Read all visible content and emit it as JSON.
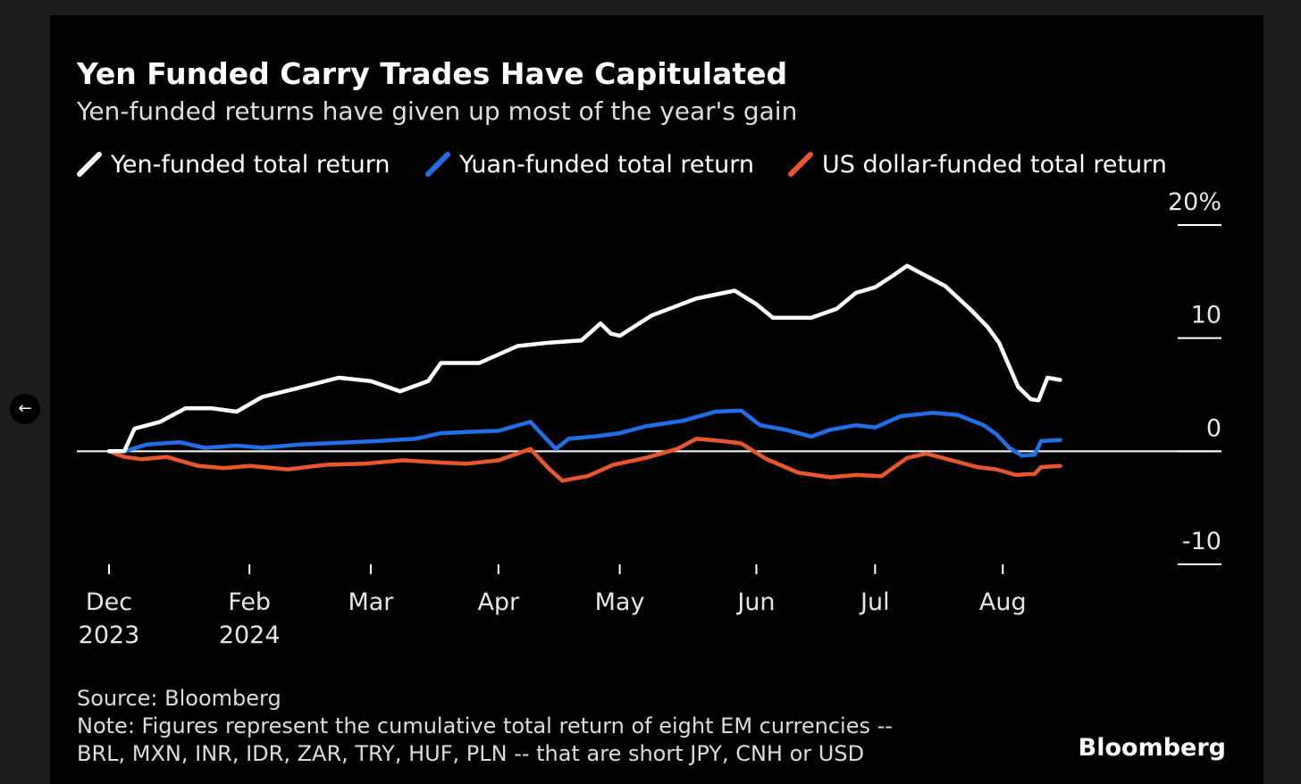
{
  "colors": {
    "background": "#000000",
    "yen": "#ffffff",
    "yuan": "#1f6fe8",
    "usd": "#e8572b",
    "zero_line": "#ffffff",
    "text": "#ffffff"
  },
  "ui": {
    "back_icon": "left-arrow-icon",
    "back_glyph": "←"
  },
  "chart_data": {
    "type": "line",
    "title": "Yen Funded Carry Trades Have Capitulated",
    "subtitle": "Yen-funded returns have given up most of the year's gain",
    "ylim": [
      -10,
      20
    ],
    "y_unit": "%",
    "y_ticks": [
      {
        "value": 20,
        "label": "20%"
      },
      {
        "value": 10,
        "label": "10"
      },
      {
        "value": 0,
        "label": "0"
      },
      {
        "value": -10,
        "label": "-10"
      }
    ],
    "x_domain": [
      0,
      8.3
    ],
    "x_ticks": [
      {
        "pos": 0.0,
        "month": "Dec",
        "year": "2023"
      },
      {
        "pos": 1.1,
        "month": "Feb",
        "year": "2024"
      },
      {
        "pos": 2.05,
        "month": "Mar",
        "year": ""
      },
      {
        "pos": 3.05,
        "month": "Apr",
        "year": ""
      },
      {
        "pos": 4.0,
        "month": "May",
        "year": ""
      },
      {
        "pos": 5.07,
        "month": "Jun",
        "year": ""
      },
      {
        "pos": 6.0,
        "month": "Jul",
        "year": ""
      },
      {
        "pos": 7.0,
        "month": "Aug",
        "year": ""
      }
    ],
    "legend": [
      {
        "key": "yen",
        "label": "Yen-funded total return"
      },
      {
        "key": "yuan",
        "label": "Yuan-funded total return"
      },
      {
        "key": "usd",
        "label": "US dollar-funded total return"
      }
    ],
    "series": [
      {
        "key": "yen",
        "name": "Yen-funded total return",
        "points": [
          [
            0,
            0
          ],
          [
            0.12,
            0
          ],
          [
            0.2,
            2
          ],
          [
            0.4,
            2.6
          ],
          [
            0.6,
            3.8
          ],
          [
            0.8,
            3.8
          ],
          [
            1.0,
            3.5
          ],
          [
            1.2,
            4.8
          ],
          [
            1.45,
            5.5
          ],
          [
            1.8,
            6.5
          ],
          [
            2.05,
            6.2
          ],
          [
            2.28,
            5.3
          ],
          [
            2.5,
            6.2
          ],
          [
            2.6,
            7.8
          ],
          [
            2.9,
            7.8
          ],
          [
            3.2,
            9.3
          ],
          [
            3.45,
            9.6
          ],
          [
            3.7,
            9.8
          ],
          [
            3.85,
            11.3
          ],
          [
            3.93,
            10.4
          ],
          [
            4.0,
            10.2
          ],
          [
            4.25,
            12
          ],
          [
            4.6,
            13.5
          ],
          [
            4.9,
            14.2
          ],
          [
            5.07,
            13
          ],
          [
            5.2,
            11.8
          ],
          [
            5.5,
            11.8
          ],
          [
            5.7,
            12.6
          ],
          [
            5.85,
            14
          ],
          [
            6.0,
            14.5
          ],
          [
            6.15,
            15.6
          ],
          [
            6.25,
            16.4
          ],
          [
            6.4,
            15.5
          ],
          [
            6.55,
            14.6
          ],
          [
            6.75,
            12.5
          ],
          [
            6.88,
            11
          ],
          [
            6.97,
            9.6
          ],
          [
            7.12,
            5.7
          ],
          [
            7.22,
            4.6
          ],
          [
            7.28,
            4.5
          ],
          [
            7.35,
            6.5
          ],
          [
            7.45,
            6.3
          ]
        ]
      },
      {
        "key": "yuan",
        "name": "Yuan-funded total return",
        "points": [
          [
            0,
            0
          ],
          [
            0.12,
            0
          ],
          [
            0.3,
            0.6
          ],
          [
            0.55,
            0.8
          ],
          [
            0.75,
            0.3
          ],
          [
            1.0,
            0.5
          ],
          [
            1.2,
            0.3
          ],
          [
            1.5,
            0.6
          ],
          [
            1.9,
            0.8
          ],
          [
            2.1,
            0.9
          ],
          [
            2.4,
            1.1
          ],
          [
            2.6,
            1.6
          ],
          [
            2.8,
            1.7
          ],
          [
            3.05,
            1.8
          ],
          [
            3.3,
            2.6
          ],
          [
            3.5,
            0.2
          ],
          [
            3.6,
            1.1
          ],
          [
            3.8,
            1.3
          ],
          [
            4.0,
            1.6
          ],
          [
            4.2,
            2.2
          ],
          [
            4.5,
            2.7
          ],
          [
            4.75,
            3.5
          ],
          [
            4.95,
            3.6
          ],
          [
            5.1,
            2.3
          ],
          [
            5.3,
            1.9
          ],
          [
            5.5,
            1.3
          ],
          [
            5.65,
            1.9
          ],
          [
            5.85,
            2.3
          ],
          [
            6.0,
            2.1
          ],
          [
            6.2,
            3.1
          ],
          [
            6.45,
            3.4
          ],
          [
            6.65,
            3.2
          ],
          [
            6.85,
            2.3
          ],
          [
            6.95,
            1.5
          ],
          [
            7.05,
            0.3
          ],
          [
            7.15,
            -0.4
          ],
          [
            7.25,
            -0.3
          ],
          [
            7.3,
            0.9
          ],
          [
            7.45,
            1.0
          ]
        ]
      },
      {
        "key": "usd",
        "name": "US dollar-funded total return",
        "points": [
          [
            0,
            0
          ],
          [
            0.12,
            -0.5
          ],
          [
            0.25,
            -0.7
          ],
          [
            0.45,
            -0.5
          ],
          [
            0.7,
            -1.3
          ],
          [
            0.9,
            -1.5
          ],
          [
            1.1,
            -1.3
          ],
          [
            1.4,
            -1.6
          ],
          [
            1.7,
            -1.2
          ],
          [
            2.0,
            -1.1
          ],
          [
            2.3,
            -0.8
          ],
          [
            2.6,
            -1.0
          ],
          [
            2.8,
            -1.1
          ],
          [
            3.05,
            -0.8
          ],
          [
            3.3,
            0.2
          ],
          [
            3.45,
            -1.6
          ],
          [
            3.55,
            -2.6
          ],
          [
            3.75,
            -2.2
          ],
          [
            3.95,
            -1.2
          ],
          [
            4.2,
            -0.6
          ],
          [
            4.45,
            0.2
          ],
          [
            4.6,
            1.1
          ],
          [
            4.8,
            0.9
          ],
          [
            4.95,
            0.7
          ],
          [
            5.15,
            -0.7
          ],
          [
            5.4,
            -1.9
          ],
          [
            5.65,
            -2.3
          ],
          [
            5.85,
            -2.1
          ],
          [
            6.05,
            -2.2
          ],
          [
            6.25,
            -0.6
          ],
          [
            6.4,
            -0.2
          ],
          [
            6.6,
            -0.8
          ],
          [
            6.8,
            -1.4
          ],
          [
            6.95,
            -1.6
          ],
          [
            7.1,
            -2.1
          ],
          [
            7.25,
            -2.0
          ],
          [
            7.3,
            -1.4
          ],
          [
            7.45,
            -1.3
          ]
        ]
      }
    ],
    "source": "Source: Bloomberg",
    "note_line1": "Note: Figures represent the cumulative total return of eight EM currencies --",
    "note_line2": "BRL, MXN, INR, IDR, ZAR, TRY, HUF, PLN -- that are short JPY, CNH or USD",
    "brand": "Bloomberg"
  }
}
